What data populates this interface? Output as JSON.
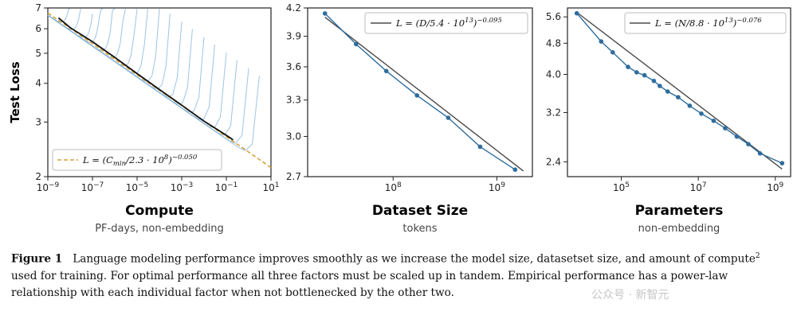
{
  "chart_data": [
    {
      "type": "line",
      "x_scale": "log",
      "y_scale": "log",
      "xlim": [
        1e-09,
        10
      ],
      "ylim": [
        2,
        7
      ],
      "x_tick_labels": [
        "10−9",
        "10−7",
        "10−5",
        "10−3",
        "10−1",
        "101"
      ],
      "x_tick_values": [
        1e-09,
        1e-07,
        1e-05,
        0.001,
        0.1,
        10
      ],
      "y_tick_labels": [
        "2",
        "3",
        "4",
        "5",
        "6",
        "7"
      ],
      "y_tick_values": [
        2,
        3,
        4,
        5,
        6,
        7
      ],
      "ylabel": "Test Loss",
      "xlabel": "Compute",
      "xlabel_sub": "PF-days, non-embedding",
      "legend": "L = (Cmin/2.3 · 10^8)^−0.050",
      "legend_position": "bottom-left",
      "series": [
        {
          "name": "L = (Cmin/2.3 · 10^8)^−0.050",
          "style": "dashed",
          "color": "#d4a23a",
          "x": [
            1e-09,
            1e-08,
            1e-07,
            1e-06,
            1e-05,
            0.0001,
            0.001,
            0.01,
            0.1,
            1,
            10
          ],
          "y": [
            6.74,
            6.02,
            5.37,
            4.78,
            4.26,
            3.8,
            3.39,
            3.02,
            2.69,
            2.4,
            2.14
          ]
        },
        {
          "name": "frontier",
          "style": "solid",
          "color": "#111111",
          "x": [
            3e-09,
            1e-08,
            1e-07,
            1e-06,
            1e-05,
            0.0001,
            0.001,
            0.01,
            0.1,
            0.2
          ],
          "y": [
            6.5,
            6.05,
            5.45,
            4.85,
            4.3,
            3.82,
            3.4,
            3.02,
            2.72,
            2.63
          ]
        }
      ],
      "training_curves": {
        "color": "#7fb0d8",
        "end_compute": [
          1e-08,
          3e-08,
          1e-07,
          3e-07,
          1e-06,
          3e-06,
          1e-05,
          3e-05,
          0.0001,
          0.0003,
          0.001,
          0.003,
          0.01,
          0.03,
          0.1,
          0.3,
          1,
          3
        ]
      }
    },
    {
      "type": "line",
      "x_scale": "log",
      "y_scale": "log",
      "xlim": [
        15000000.0,
        2200000000.0
      ],
      "ylim": [
        2.7,
        4.2
      ],
      "x_tick_labels": [
        "108",
        "109"
      ],
      "x_tick_values": [
        100000000.0,
        1000000000.0
      ],
      "y_tick_labels": [
        "2.7",
        "3.0",
        "3.3",
        "3.6",
        "3.9",
        "4.2"
      ],
      "y_tick_values": [
        2.7,
        3.0,
        3.3,
        3.6,
        3.9,
        4.2
      ],
      "xlabel": "Dataset Size",
      "xlabel_sub": "tokens",
      "legend": "L = (D/5.4 · 10^13)^−0.095",
      "legend_position": "top-right",
      "series": [
        {
          "name": "L = (D/5.4 · 10^13)^−0.095",
          "style": "solid",
          "color": "#4a4a4a",
          "x": [
            22000000.0,
            1800000000.0
          ],
          "y": [
            4.1,
            2.74
          ]
        },
        {
          "name": "data",
          "style": "solid-markers",
          "color": "#2e6d9e",
          "x": [
            22000000.0,
            44000000.0,
            86000000.0,
            170000000.0,
            340000000.0,
            690000000.0,
            1500000000.0
          ],
          "y": [
            4.14,
            3.82,
            3.56,
            3.34,
            3.15,
            2.92,
            2.75
          ]
        }
      ]
    },
    {
      "type": "line",
      "x_scale": "log",
      "y_scale": "log",
      "xlim": [
        4000.0,
        2500000000.0
      ],
      "ylim": [
        2.2,
        5.9
      ],
      "x_tick_labels": [
        "105",
        "107",
        "109"
      ],
      "x_tick_values": [
        100000.0,
        10000000.0,
        1000000000.0
      ],
      "y_tick_labels": [
        "2.4",
        "3.2",
        "4.0",
        "4.8",
        "5.6"
      ],
      "y_tick_values": [
        2.4,
        3.2,
        4.0,
        4.8,
        5.6
      ],
      "xlabel": "Parameters",
      "xlabel_sub": "non-embedding",
      "legend": "L = (N/8.8 · 10^13)^−0.076",
      "legend_position": "top-right",
      "series": [
        {
          "name": "L = (N/8.8 · 10^13)^−0.076",
          "style": "solid",
          "color": "#4a4a4a",
          "x": [
            7000.0,
            1500000000.0
          ],
          "y": [
            5.75,
            2.3
          ]
        },
        {
          "name": "data",
          "style": "solid-markers",
          "color": "#2e6d9e",
          "x": [
            7000.0,
            30000.0,
            60000.0,
            150000.0,
            250000.0,
            400000.0,
            700000.0,
            1000000.0,
            1600000.0,
            3000000.0,
            6000000.0,
            12000000.0,
            25000000.0,
            50000000.0,
            100000000.0,
            200000000.0,
            400000000.0,
            1500000000.0
          ],
          "y": [
            5.72,
            4.85,
            4.55,
            4.18,
            4.05,
            3.98,
            3.85,
            3.74,
            3.62,
            3.5,
            3.33,
            3.18,
            3.05,
            2.92,
            2.78,
            2.66,
            2.52,
            2.38
          ]
        }
      ]
    }
  ],
  "caption": {
    "label": "Figure 1",
    "text_part1": "Language modeling performance improves smoothly as we increase the model size, datasetset size, and amount of compute",
    "footnote": "2",
    "text_part2": " used for training. For optimal performance all three factors must be scaled up in tandem. Empirical performance has a power-law relationship with each individual factor when not bottlenecked by the other two."
  },
  "watermark": "公众号 · 新智元"
}
